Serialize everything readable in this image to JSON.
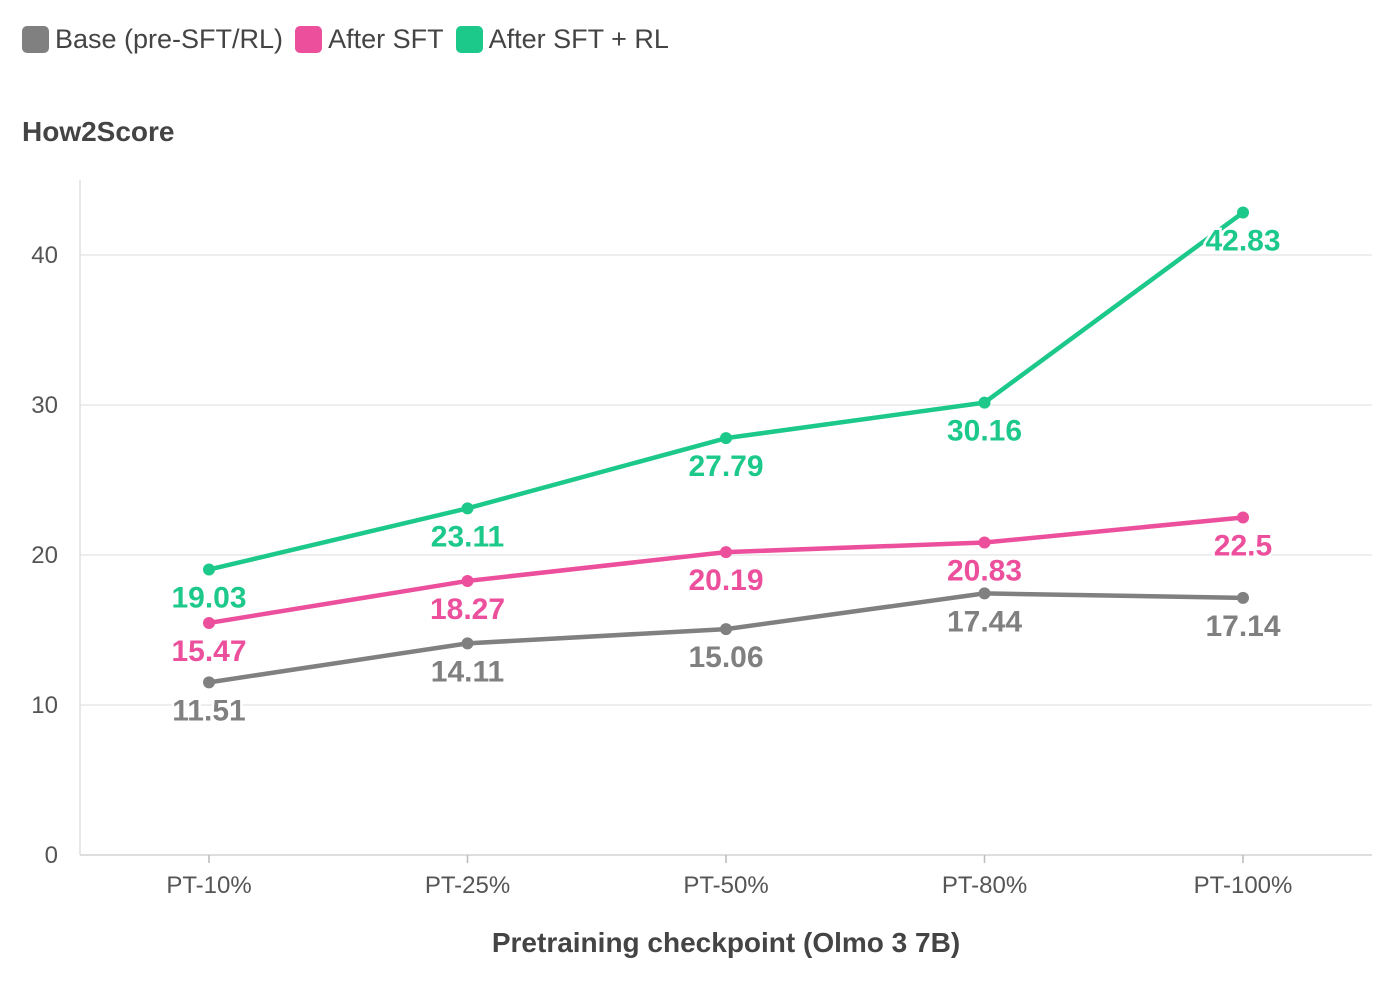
{
  "chart_data": {
    "type": "line",
    "categories": [
      "PT-10%",
      "PT-25%",
      "PT-50%",
      "PT-80%",
      "PT-100%"
    ],
    "series": [
      {
        "name": "Base (pre-SFT/RL)",
        "color": "#808080",
        "values": [
          11.51,
          14.11,
          15.06,
          17.44,
          17.14
        ],
        "labels": [
          "11.51",
          "14.11",
          "15.06",
          "17.44",
          "17.14"
        ],
        "label_position": "below"
      },
      {
        "name": "After SFT",
        "color": "#ec4f9c",
        "values": [
          15.47,
          18.27,
          20.19,
          20.83,
          22.5
        ],
        "labels": [
          "15.47",
          "18.27",
          "20.19",
          "20.83",
          "22.5"
        ],
        "label_position": "below"
      },
      {
        "name": "After SFT + RL",
        "color": "#1cc98a",
        "values": [
          19.03,
          23.11,
          27.79,
          30.16,
          42.83
        ],
        "labels": [
          "19.03",
          "23.11",
          "27.79",
          "30.16",
          "42.83"
        ],
        "label_position": "below"
      }
    ],
    "ylabel": "How2Score",
    "xlabel": "Pretraining checkpoint (Olmo 3 7B)",
    "ylim": [
      0,
      45
    ],
    "yticks": [
      0,
      10,
      20,
      30,
      40
    ],
    "ytick_labels": [
      "0",
      "10",
      "20",
      "30",
      "40"
    ],
    "grid": true,
    "legend": "top-left"
  }
}
